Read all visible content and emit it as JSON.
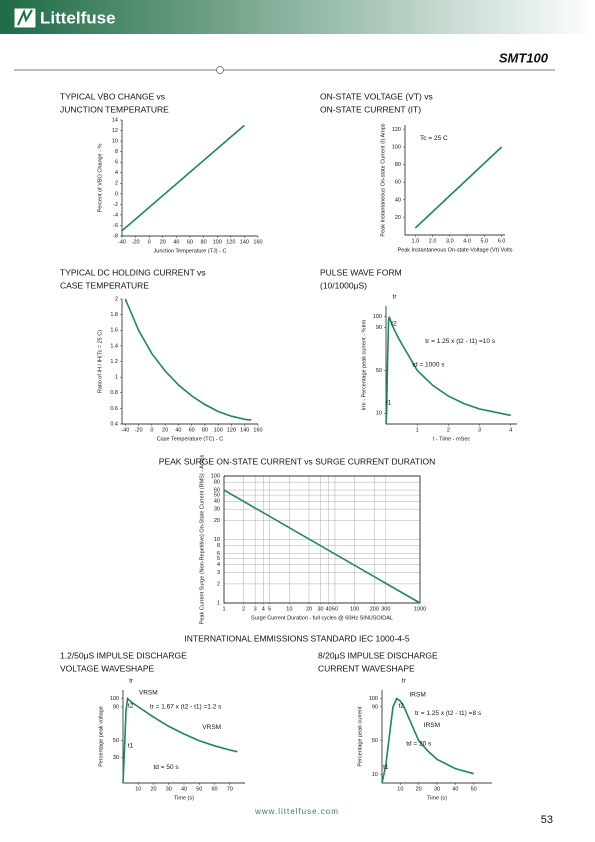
{
  "header": {
    "brand": "Littelfuse",
    "part": "SMT100"
  },
  "section_title": "INTERNATIONAL EMMISSIONS STANDARD IEC 1000-4-5",
  "footer": {
    "url": "www.littelfuse.com",
    "page": "53"
  },
  "chart_data": [
    {
      "type": "line",
      "title": [
        "TYPICAL VBO CHANGE vs",
        "JUNCTION TEMPERATURE"
      ],
      "color": "#1a8a5a",
      "x": [
        -40,
        140
      ],
      "values": [
        -7,
        13
      ],
      "xlim": [
        -40,
        160
      ],
      "ylim": [
        -8,
        14
      ],
      "xticks": [
        -40,
        -20,
        0,
        20,
        40,
        60,
        80,
        100,
        120,
        140,
        160
      ],
      "yticks": [
        -8,
        -6,
        -4,
        -2,
        0,
        2,
        4,
        6,
        8,
        10,
        12,
        14
      ],
      "xlabel": "Junction Temperature (TJ) - C",
      "ylabel": "Percent of VBO Change - %",
      "annotations": []
    },
    {
      "type": "line",
      "title": [
        "ON-STATE VOLTAGE (VT) vs",
        "ON-STATE CURRENT (IT)"
      ],
      "color": "#1a8a5a",
      "x": [
        1.0,
        6.0
      ],
      "values": [
        8,
        100
      ],
      "xlim": [
        0.4,
        6.2
      ],
      "ylim": [
        0,
        125
      ],
      "xticks": [
        {
          "value": 1,
          "label": "1.0"
        },
        {
          "value": 2,
          "label": "2.0"
        },
        {
          "value": 3,
          "label": "3.0"
        },
        {
          "value": 4,
          "label": "4.0"
        },
        {
          "value": 5,
          "label": "5.0"
        },
        {
          "value": 6,
          "label": "6.0"
        }
      ],
      "yticks": [
        20,
        40,
        60,
        80,
        100,
        120
      ],
      "xlabel": "Peak Instantaneous On-state Voltage (Vt) Volts",
      "ylabel": "Peak Instantaneous On-state Current (I) Amps",
      "annotations": [
        "Tc = 25 C"
      ]
    },
    {
      "type": "line",
      "title": [
        "TYPICAL DC HOLDING CURRENT vs",
        "CASE TEMPERATURE"
      ],
      "color": "#1a8a5a",
      "x": [
        -40,
        -20,
        0,
        20,
        40,
        60,
        80,
        100,
        120,
        140,
        150
      ],
      "values": [
        2.0,
        1.6,
        1.3,
        1.08,
        0.9,
        0.76,
        0.65,
        0.56,
        0.5,
        0.46,
        0.45
      ],
      "xlim": [
        -45,
        160
      ],
      "ylim": [
        0.4,
        2
      ],
      "xticks": [
        -40,
        -20,
        0,
        20,
        40,
        60,
        80,
        100,
        120,
        140,
        160
      ],
      "yticks": [
        0.4,
        0.6,
        0.8,
        1,
        1.2,
        1.4,
        1.6,
        1.8,
        2
      ],
      "xlabel": "Case Temperature (TC) - C",
      "ylabel": "Ratio of IH / IH(Tc = 25 C)",
      "annotations": []
    },
    {
      "type": "line",
      "title": [
        "PULSE WAVE FORM",
        "(10/1000µS)"
      ],
      "color": "#1a8a5a",
      "x": [
        0,
        0.02,
        0.05,
        0.08,
        0.1,
        0.2,
        0.4,
        0.6,
        1.0,
        1.5,
        2.0,
        2.5,
        3.0,
        3.5,
        4.0
      ],
      "values": [
        0,
        10,
        60,
        95,
        100,
        92,
        80,
        70,
        50,
        36,
        26,
        19,
        14,
        11,
        8
      ],
      "xlim": [
        0,
        4.2
      ],
      "ylim": [
        0,
        110
      ],
      "xticks": [
        1,
        2,
        3,
        4
      ],
      "yticks": [
        10,
        50,
        90,
        100
      ],
      "xlabel": "t - Time - mSec",
      "ylabel": "Irm - Percentage peak current - %Irm",
      "annotations": [
        "tr",
        "t2",
        "tr = 1.25 x (t2 - t1) =10 s",
        "td = 1000 s",
        "t1"
      ]
    },
    {
      "type": "line",
      "title": [
        "PEAK SURGE ON-STATE CURRENT vs SURGE CURRENT DURATION"
      ],
      "color": "#1a8a5a",
      "x": [
        1,
        1000
      ],
      "values": [
        60,
        1
      ],
      "xscale": "log",
      "yscale": "log",
      "grid": true,
      "xlim": [
        1,
        1000
      ],
      "ylim": [
        1,
        100
      ],
      "xticks": [
        1,
        2,
        3,
        4,
        5,
        10,
        20,
        30,
        40,
        50,
        100,
        200,
        300,
        1000
      ],
      "yticks": [
        1,
        2,
        3,
        4,
        5,
        6,
        8,
        10,
        20,
        30,
        40,
        50,
        60,
        80,
        100
      ],
      "xlabel": "Surge Current Duration - full cycles @ 60Hz SINUSOIDAL",
      "ylabel": "Peak Current Surge (Non-Repetitive) On-State Current (RMS) - Amps",
      "annotations": []
    },
    {
      "type": "line",
      "title": [
        "1.2/50µS IMPULSE DISCHARGE",
        "VOLTAGE WAVESHAPE"
      ],
      "color": "#1a8a5a",
      "x": [
        0,
        1,
        2,
        3,
        4,
        6,
        10,
        20,
        30,
        40,
        50,
        60,
        70,
        75
      ],
      "values": [
        0,
        40,
        85,
        100,
        98,
        95,
        90,
        78,
        67,
        58,
        50,
        44,
        39,
        37
      ],
      "xlim": [
        0,
        80
      ],
      "ylim": [
        0,
        110
      ],
      "xticks": [
        10,
        20,
        30,
        40,
        50,
        60,
        70
      ],
      "yticks": [
        30,
        50,
        90,
        100
      ],
      "xlabel": "Time (s)",
      "ylabel": "Percentage peak voltage",
      "annotations": [
        "tr",
        "VRSM",
        "t2",
        "tr = 1.67 x (t2 - t1) =1.2 s",
        "VRSM",
        "t1",
        "td = 50 s"
      ]
    },
    {
      "type": "line",
      "title": [
        "8/20µS IMPULSE DISCHARGE",
        "CURRENT WAVESHAPE"
      ],
      "color": "#1a8a5a",
      "x": [
        0,
        2,
        4,
        6,
        8,
        10,
        12,
        15,
        20,
        25,
        30,
        40,
        50
      ],
      "values": [
        0,
        20,
        55,
        90,
        100,
        97,
        90,
        75,
        50,
        38,
        28,
        17,
        11
      ],
      "xlim": [
        0,
        60
      ],
      "ylim": [
        0,
        110
      ],
      "xticks": [
        10,
        20,
        30,
        40,
        50
      ],
      "yticks": [
        10,
        50,
        90,
        100
      ],
      "xlabel": "Time (s)",
      "ylabel": "Percentage peak current",
      "annotations": [
        "tr",
        "IRSM",
        "t2",
        "tr = 1.25 x (t2 - t1) =8 s",
        "IRSM",
        "td = 20 s",
        "t1"
      ]
    }
  ]
}
